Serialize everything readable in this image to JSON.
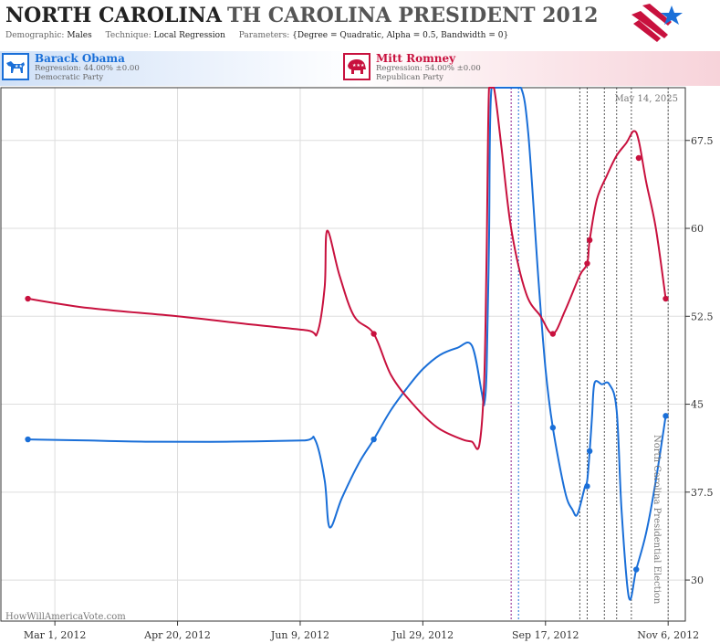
{
  "header": {
    "state": "NORTH CAROLINA",
    "subtitle": "TH CAROLINA PRESIDENT 2012",
    "demographic_label": "Demographic:",
    "demographic_value": "Males",
    "technique_label": "Technique:",
    "technique_value": "Local Regression",
    "parameters_label": "Parameters:",
    "parameters_value": "{Degree = Quadratic, Alpha = 0.5, Bandwidth = 0}"
  },
  "candidates": {
    "dem": {
      "name": "Barack Obama",
      "regression": "Regression: 44.00% ±0.00",
      "party": "Democratic Party",
      "color": "#1a6fd8"
    },
    "rep": {
      "name": "Mitt Romney",
      "regression": "Regression: 54.00% ±0.00",
      "party": "Republican Party",
      "color": "#c8113e"
    }
  },
  "chart_data": {
    "type": "line",
    "date_annotation": "May 14, 2025",
    "watermark": "HowWillAmericaVote.com",
    "vertical_label": "North Carolina Presidential Election",
    "x_ticks": [
      "Mar 1, 2012",
      "Apr 20, 2012",
      "Jun 9, 2012",
      "Jul 29, 2012",
      "Sep 17, 2012",
      "Nov 6, 2012"
    ],
    "y_ticks": [
      30,
      37.5,
      45,
      52.5,
      60,
      67.5
    ],
    "xlim": [
      "2012-02-08",
      "2012-11-13"
    ],
    "ylim": [
      26.5,
      72
    ],
    "grid": true,
    "event_lines": [
      {
        "date": "2012-09-03",
        "color": "#8b1a8b"
      },
      {
        "date": "2012-09-06",
        "color": "#1a6fd8"
      },
      {
        "date": "2012-10-01",
        "color": "#555555"
      },
      {
        "date": "2012-10-04",
        "color": "#555555"
      },
      {
        "date": "2012-10-11",
        "color": "#555555"
      },
      {
        "date": "2012-10-16",
        "color": "#555555"
      },
      {
        "date": "2012-10-22",
        "color": "#555555"
      },
      {
        "date": "2012-11-06",
        "color": "#555555"
      }
    ],
    "series": [
      {
        "name": "Barack Obama",
        "color": "#1a6fd8",
        "curve": [
          [
            "2012-02-19",
            42.0
          ],
          [
            "2012-03-15",
            41.9
          ],
          [
            "2012-04-10",
            41.8
          ],
          [
            "2012-05-10",
            41.8
          ],
          [
            "2012-06-10",
            41.9
          ],
          [
            "2012-06-15",
            42.0
          ],
          [
            "2012-06-19",
            38.5
          ],
          [
            "2012-06-21",
            34.5
          ],
          [
            "2012-06-26",
            37.0
          ],
          [
            "2012-07-03",
            40.0
          ],
          [
            "2012-07-09",
            42.0
          ],
          [
            "2012-07-16",
            44.5
          ],
          [
            "2012-07-23",
            46.5
          ],
          [
            "2012-07-29",
            48.0
          ],
          [
            "2012-08-05",
            49.2
          ],
          [
            "2012-08-12",
            49.8
          ],
          [
            "2012-08-18",
            50.0
          ],
          [
            "2012-08-22",
            46.0
          ],
          [
            "2012-08-23",
            45.0
          ],
          [
            "2012-08-24",
            48.0
          ],
          [
            "2012-08-25",
            59.0
          ],
          [
            "2012-08-26",
            72.0
          ],
          [
            "2012-08-31",
            72.0
          ],
          [
            "2012-09-02",
            72.0
          ],
          [
            "2012-09-07",
            72.0
          ],
          [
            "2012-09-10",
            68.0
          ],
          [
            "2012-09-14",
            56.0
          ],
          [
            "2012-09-17",
            48.0
          ],
          [
            "2012-09-20",
            43.0
          ],
          [
            "2012-09-25",
            37.5
          ],
          [
            "2012-09-28",
            36.0
          ],
          [
            "2012-09-30",
            35.6
          ],
          [
            "2012-10-03",
            37.9
          ],
          [
            "2012-10-04",
            38.5
          ],
          [
            "2012-10-05",
            41.0
          ],
          [
            "2012-10-06",
            44.0
          ],
          [
            "2012-10-07",
            46.8
          ],
          [
            "2012-10-10",
            46.7
          ],
          [
            "2012-10-13",
            46.7
          ],
          [
            "2012-10-16",
            44.5
          ],
          [
            "2012-10-18",
            36.0
          ],
          [
            "2012-10-21",
            28.5
          ],
          [
            "2012-10-24",
            30.9
          ],
          [
            "2012-10-28",
            34.0
          ],
          [
            "2012-11-01",
            38.5
          ],
          [
            "2012-11-05",
            44.0
          ]
        ],
        "points": [
          [
            "2012-02-19",
            42.0
          ],
          [
            "2012-07-09",
            42.0
          ],
          [
            "2012-09-20",
            43.0
          ],
          [
            "2012-10-04",
            38.0
          ],
          [
            "2012-10-05",
            41.0
          ],
          [
            "2012-10-24",
            30.9
          ],
          [
            "2012-11-05",
            44.0
          ]
        ]
      },
      {
        "name": "Mitt Romney",
        "color": "#c8113e",
        "curve": [
          [
            "2012-02-19",
            54.0
          ],
          [
            "2012-03-15",
            53.2
          ],
          [
            "2012-04-20",
            52.5
          ],
          [
            "2012-05-20",
            51.8
          ],
          [
            "2012-06-12",
            51.3
          ],
          [
            "2012-06-16",
            51.1
          ],
          [
            "2012-06-19",
            55.0
          ],
          [
            "2012-06-20",
            59.8
          ],
          [
            "2012-06-25",
            56.0
          ],
          [
            "2012-07-01",
            52.5
          ],
          [
            "2012-07-09",
            51.0
          ],
          [
            "2012-07-16",
            47.5
          ],
          [
            "2012-07-25",
            45.0
          ],
          [
            "2012-08-04",
            43.0
          ],
          [
            "2012-08-14",
            42.0
          ],
          [
            "2012-08-18",
            41.8
          ],
          [
            "2012-08-21",
            41.5
          ],
          [
            "2012-08-23",
            47.0
          ],
          [
            "2012-08-24",
            58.0
          ],
          [
            "2012-08-25",
            72.0
          ],
          [
            "2012-08-27",
            72.0
          ],
          [
            "2012-08-30",
            67.0
          ],
          [
            "2012-09-03",
            60.0
          ],
          [
            "2012-09-09",
            54.5
          ],
          [
            "2012-09-15",
            52.5
          ],
          [
            "2012-09-20",
            51.0
          ],
          [
            "2012-09-25",
            53.0
          ],
          [
            "2012-10-01",
            56.0
          ],
          [
            "2012-10-04",
            57.0
          ],
          [
            "2012-10-05",
            59.0
          ],
          [
            "2012-10-08",
            62.5
          ],
          [
            "2012-10-12",
            64.5
          ],
          [
            "2012-10-16",
            66.2
          ],
          [
            "2012-10-20",
            67.3
          ],
          [
            "2012-10-23",
            68.3
          ],
          [
            "2012-10-25",
            67.5
          ],
          [
            "2012-10-28",
            64.0
          ],
          [
            "2012-11-01",
            60.0
          ],
          [
            "2012-11-05",
            54.0
          ]
        ],
        "points": [
          [
            "2012-02-19",
            54.0
          ],
          [
            "2012-07-09",
            51.0
          ],
          [
            "2012-09-20",
            51.0
          ],
          [
            "2012-10-04",
            57.0
          ],
          [
            "2012-10-05",
            59.0
          ],
          [
            "2012-10-25",
            66.0
          ],
          [
            "2012-11-05",
            54.0
          ]
        ]
      }
    ]
  }
}
